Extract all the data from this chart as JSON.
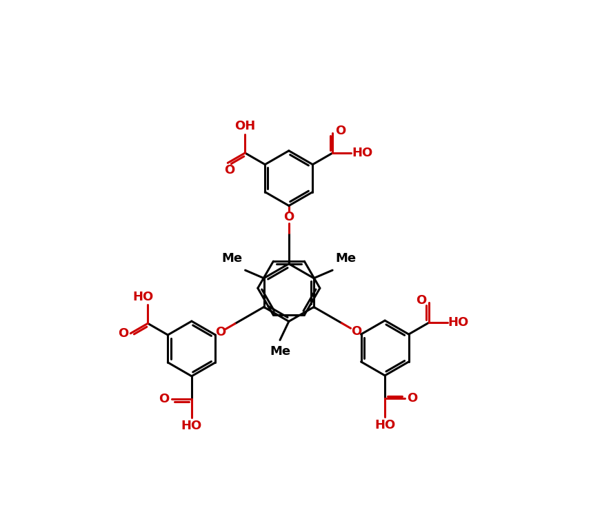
{
  "bg_color": "#ffffff",
  "bond_color": "#000000",
  "heteroatom_color": "#cc0000",
  "line_width": 2.2,
  "figsize": [
    8.57,
    7.72
  ],
  "dpi": 100,
  "font_size": 13,
  "font_weight": "bold",
  "xlim": [
    -5.0,
    6.0
  ],
  "ylim": [
    -6.5,
    5.5
  ]
}
